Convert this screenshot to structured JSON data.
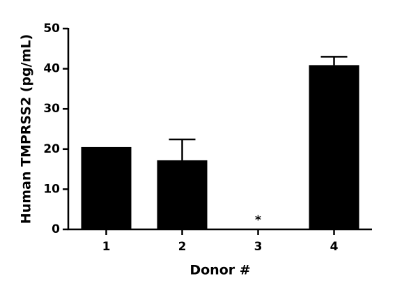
{
  "chart_data": {
    "type": "bar",
    "x_label": "Donor #",
    "y_label": "Human TMPRSS2 (pg/mL)",
    "categories": [
      "1",
      "2",
      "3",
      "4"
    ],
    "values": [
      20.5,
      17.2,
      null,
      40.9
    ],
    "errors": [
      null,
      5.2,
      null,
      2.1
    ],
    "color": "#000000",
    "annotations": [
      {
        "text": "*",
        "category": "3"
      }
    ],
    "ylim": [
      0,
      50
    ],
    "yticks": [
      0,
      10,
      20,
      30,
      40,
      50
    ],
    "grid": false
  }
}
